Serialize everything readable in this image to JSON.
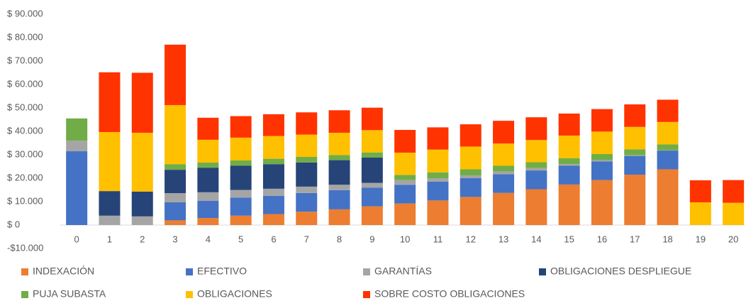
{
  "chart_data": {
    "type": "stacked_bar",
    "categories": [
      "0",
      "1",
      "2",
      "3",
      "4",
      "5",
      "6",
      "7",
      "8",
      "9",
      "10",
      "11",
      "12",
      "13",
      "14",
      "15",
      "16",
      "17",
      "18",
      "19",
      "20"
    ],
    "series": [
      {
        "name": "INDEXACIÓN",
        "color": "#ED7D31",
        "values": [
          0,
          0,
          0,
          2000,
          3000,
          4000,
          4700,
          5700,
          6700,
          8000,
          9200,
          10500,
          12000,
          13700,
          15300,
          17300,
          19200,
          21500,
          23800,
          0,
          0
        ]
      },
      {
        "name": "EFECTIVO",
        "color": "#4472C4",
        "values": [
          31500,
          0,
          0,
          7700,
          7300,
          7700,
          7800,
          8000,
          8200,
          8000,
          8000,
          8000,
          8000,
          8000,
          8000,
          8000,
          8000,
          8000,
          8000,
          0,
          0
        ]
      },
      {
        "name": "GARANTÍAS",
        "color": "#A5A5A5",
        "values": [
          4500,
          4000,
          3700,
          3900,
          3700,
          3300,
          3000,
          2700,
          2300,
          2000,
          2000,
          1500,
          1200,
          1200,
          1000,
          700,
          500,
          300,
          100,
          0,
          0
        ]
      },
      {
        "name": "OBLIGACIONES DESPLIEGUE",
        "color": "#264478",
        "values": [
          0,
          10500,
          10600,
          10000,
          10500,
          10300,
          10500,
          10300,
          10500,
          10800,
          0,
          0,
          0,
          0,
          0,
          0,
          0,
          0,
          0,
          0,
          0
        ]
      },
      {
        "name": "PUJA SUBASTA",
        "color": "#70AD47",
        "values": [
          9500,
          0,
          0,
          2400,
          2200,
          2300,
          2300,
          2400,
          2200,
          2200,
          2200,
          2500,
          2600,
          2400,
          2500,
          2500,
          2600,
          2500,
          2500,
          0,
          0
        ]
      },
      {
        "name": "OBLIGACIONES",
        "color": "#FFC000",
        "values": [
          0,
          25200,
          25100,
          25200,
          9700,
          9700,
          9700,
          9500,
          9500,
          9500,
          9500,
          9700,
          9700,
          9500,
          9500,
          9700,
          9600,
          9600,
          9600,
          9700,
          9500
        ]
      },
      {
        "name": "SOBRE COSTO OBLIGACIONES",
        "color": "#FF3300",
        "values": [
          0,
          25500,
          25600,
          25800,
          9400,
          9200,
          9300,
          9500,
          9600,
          9600,
          9700,
          9500,
          9500,
          9700,
          9700,
          9400,
          9600,
          9600,
          9500,
          9400,
          9700
        ]
      }
    ],
    "ylim": [
      -10000,
      90000
    ],
    "yticks": [
      {
        "value": -10000,
        "label": "-$10.000"
      },
      {
        "value": 0,
        "label": "$ 0"
      },
      {
        "value": 10000,
        "label": "$ 10.000"
      },
      {
        "value": 20000,
        "label": "$ 20.000"
      },
      {
        "value": 30000,
        "label": "$ 30.000"
      },
      {
        "value": 40000,
        "label": "$ 40.000"
      },
      {
        "value": 50000,
        "label": "$ 50.000"
      },
      {
        "value": 60000,
        "label": "$ 60.000"
      },
      {
        "value": 70000,
        "label": "$ 70.000"
      },
      {
        "value": 80000,
        "label": "$ 80.000"
      },
      {
        "value": 90000,
        "label": "$ 90.000"
      }
    ],
    "grid": false,
    "legend": "bottom"
  }
}
